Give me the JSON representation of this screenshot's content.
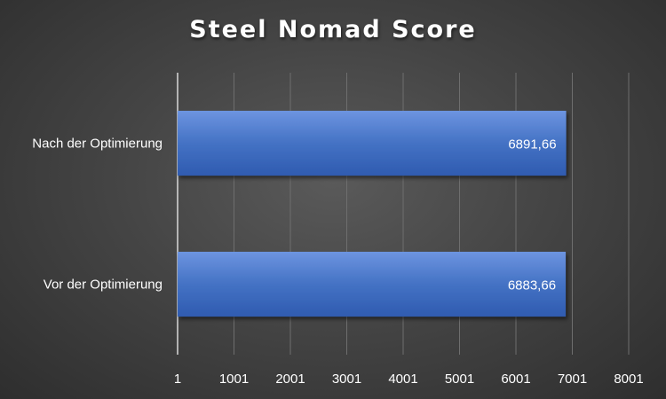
{
  "chart_data": {
    "type": "bar",
    "orientation": "horizontal",
    "title": "Steel Nomad Score",
    "categories": [
      "Nach der Optimierung",
      "Vor der Optimierung"
    ],
    "values": [
      6891.66,
      6883.66
    ],
    "value_labels": [
      "6891,66",
      "6883,66"
    ],
    "xlim": [
      1,
      8001
    ],
    "x_ticks": [
      1,
      1001,
      2001,
      3001,
      4001,
      5001,
      6001,
      7001,
      8001
    ],
    "x_tick_labels": [
      "1",
      "1001",
      "2001",
      "3001",
      "4001",
      "5001",
      "6001",
      "7001",
      "8001"
    ],
    "xlabel": "",
    "ylabel": "",
    "grid": true,
    "bar_color": "#4472c4",
    "label_color": "#ffffff"
  }
}
